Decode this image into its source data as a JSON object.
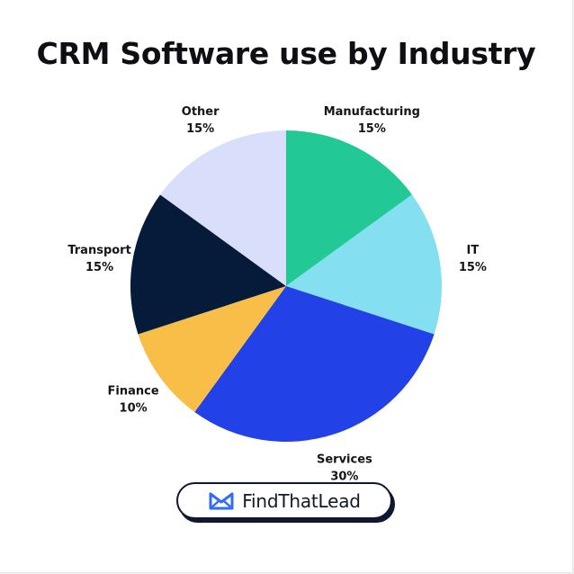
{
  "chart_data": {
    "type": "pie",
    "title": "CRM Software use by Industry",
    "unit": "%",
    "slices": [
      {
        "label": "Manufacturing",
        "value": 15,
        "value_label": "15%",
        "color": "#22c997"
      },
      {
        "label": "IT",
        "value": 15,
        "value_label": "15%",
        "color": "#84dff0"
      },
      {
        "label": "Services",
        "value": 30,
        "value_label": "30%",
        "color": "#2242e8"
      },
      {
        "label": "Finance",
        "value": 10,
        "value_label": "10%",
        "color": "#f9be48"
      },
      {
        "label": "Transport",
        "value": 15,
        "value_label": "15%",
        "color": "#061a3a"
      },
      {
        "label": "Other",
        "value": 15,
        "value_label": "15%",
        "color": "#d9dffb"
      }
    ],
    "start_angle": "12 o'clock",
    "direction": "clockwise",
    "legend": "none"
  },
  "brand": {
    "name": "FindThatLead",
    "icon": "envelope-logo-icon",
    "accent": "#2f6bff",
    "outline": "#0f1732"
  }
}
